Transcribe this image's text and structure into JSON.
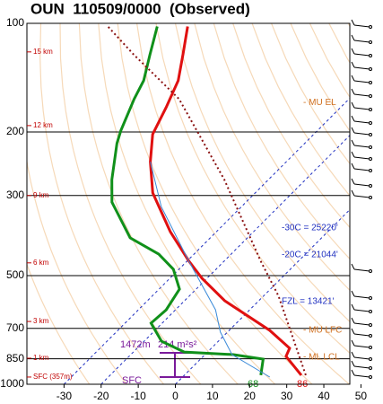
{
  "chart_data": {
    "type": "skewt",
    "title": "OUN  110509/0000  (Observed)",
    "xlim": [
      -40,
      47
    ],
    "xticks": [
      -30,
      -20,
      -10,
      0,
      10,
      20,
      30,
      40,
      50
    ],
    "ylim": [
      1000,
      100
    ],
    "yticks": [
      100,
      200,
      300,
      500,
      700,
      850,
      1000
    ],
    "log_y": true,
    "series": [
      {
        "color": "#e01010",
        "pressure": [
          944,
          837,
          795,
          709,
          587,
          509,
          454,
          378,
          295,
          242,
          203,
          171,
          144,
          122,
          102
        ],
        "values": [
          31.5,
          22.3,
          21.1,
          10.9,
          -9.2,
          -21.3,
          -29.8,
          -42.4,
          -57.6,
          -66.6,
          -73.4,
          -77,
          -81,
          -86.7,
          -93
        ]
      },
      {
        "color": "#10901a",
        "pressure": [
          944,
          852,
          828,
          814,
          760,
          677,
          622,
          545,
          480,
          436,
          393,
          313,
          271,
          215,
          198,
          162,
          144,
          122,
          102
        ],
        "values": [
          20.6,
          16.9,
          7.7,
          -6.3,
          -15.3,
          -23,
          -22.5,
          -24.5,
          -31.5,
          -39.5,
          -51.6,
          -66.1,
          -72.2,
          -80.6,
          -83,
          -87.9,
          -90.3,
          -95.6,
          -101.2
        ]
      },
      {
        "color": "#3a8ad8",
        "pressure": [
          955,
          828,
          717,
          622,
          454,
          322,
          242
        ],
        "values": [
          23.5,
          7.3,
          -1.9,
          -9.2,
          -29.8,
          -51.6,
          -66.6
        ]
      },
      {
        "color": "#8a1010",
        "dashed": true,
        "pressure": [
          944,
          570,
          454,
          271,
          162,
          122,
          102
        ],
        "values": [
          32.7,
          4.1,
          -10.4,
          -41.9,
          -75.8,
          -100,
          -114.5
        ]
      }
    ],
    "height_labels": [
      {
        "label": "15 km",
        "pressure": 120
      },
      {
        "label": "12 km",
        "pressure": 192
      },
      {
        "label": "9 km",
        "pressure": 300
      },
      {
        "label": "6 km",
        "pressure": 461
      },
      {
        "label": "3 km",
        "pressure": 670
      },
      {
        "label": "1 km",
        "pressure": 847
      },
      {
        "label": "SFC (357m)",
        "pressure": 955
      }
    ],
    "level_labels": [
      {
        "label": "- MU EL",
        "pressure": 166
      },
      {
        "label": "- MU LFC",
        "pressure": 709
      },
      {
        "label": "- ML LCL",
        "pressure": 842
      }
    ],
    "isotherms": [
      -30,
      -20,
      0
    ],
    "isotherm_labels": [
      "-30C = 25220'",
      "-20C = 21044'",
      "FZL = 13421'"
    ],
    "inflow_labels": [
      "1472m",
      "214 m²s²",
      "SFC"
    ],
    "surface_labels": [
      "68",
      "86"
    ]
  }
}
